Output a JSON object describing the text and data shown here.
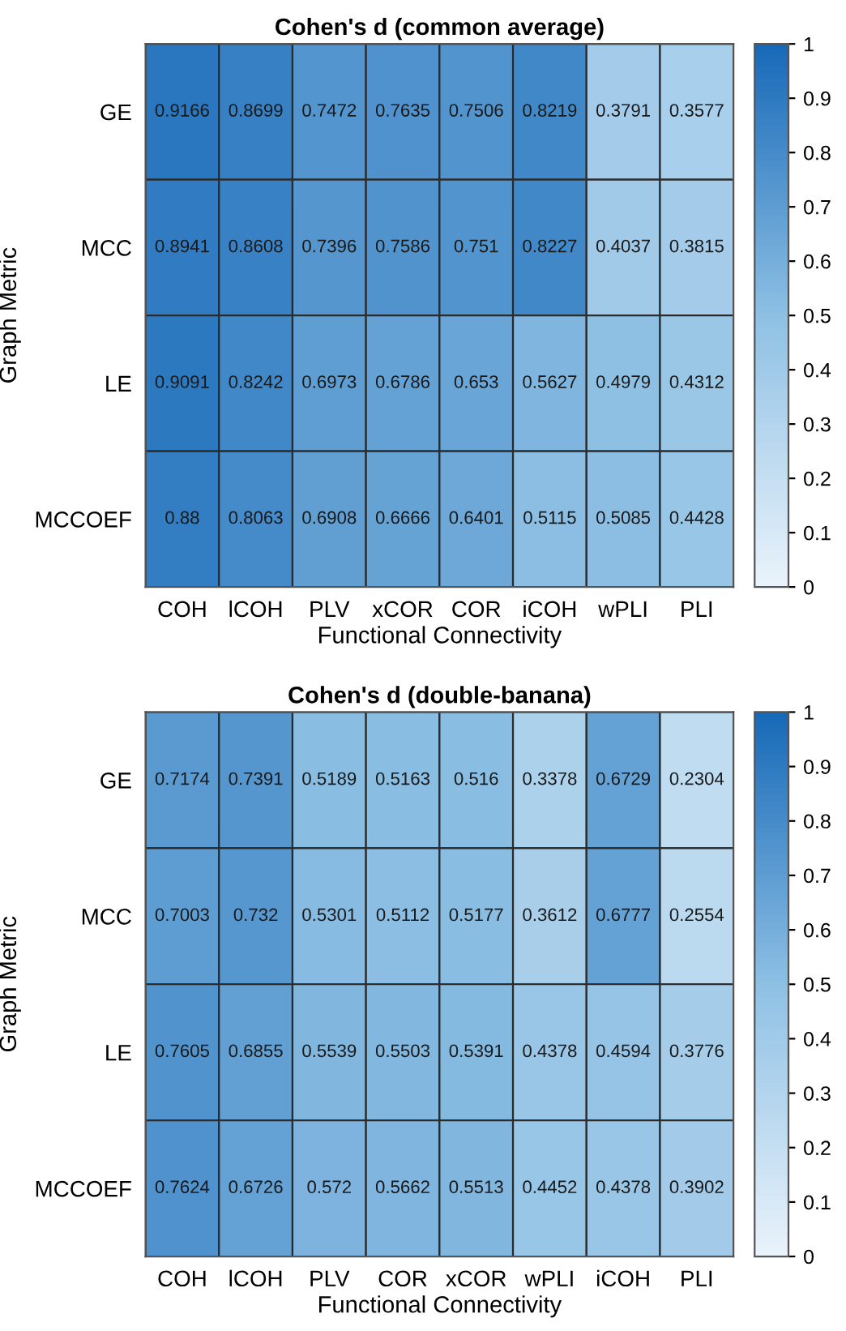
{
  "chart_data": [
    {
      "type": "heatmap",
      "title": "Cohen's d (common average)",
      "xlabel": "Functional Connectivity",
      "ylabel": "Graph Metric",
      "categories": [
        "COH",
        "lCOH",
        "PLV",
        "xCOR",
        "COR",
        "iCOH",
        "wPLI",
        "PLI"
      ],
      "y_categories": [
        "GE",
        "MCC",
        "LE",
        "MCCOEF"
      ],
      "cells": [
        [
          0.9166,
          0.8699,
          0.7472,
          0.7635,
          0.7506,
          0.8219,
          0.3791,
          0.3577
        ],
        [
          0.8941,
          0.8608,
          0.7396,
          0.7586,
          0.751,
          0.8227,
          0.4037,
          0.3815
        ],
        [
          0.9091,
          0.8242,
          0.6973,
          0.6786,
          0.653,
          0.5627,
          0.4979,
          0.4312
        ],
        [
          0.88,
          0.8063,
          0.6908,
          0.6666,
          0.6401,
          0.5115,
          0.5085,
          0.4428
        ]
      ],
      "data_labels": true,
      "clim": [
        0,
        1
      ],
      "cticks": [
        0,
        0.1,
        0.2,
        0.3,
        0.4,
        0.5,
        0.6,
        0.7,
        0.8,
        0.9,
        1
      ]
    },
    {
      "type": "heatmap",
      "title": "Cohen's d (double-banana)",
      "xlabel": "Functional Connectivity",
      "ylabel": "Graph Metric",
      "categories": [
        "COH",
        "lCOH",
        "PLV",
        "COR",
        "xCOR",
        "wPLI",
        "iCOH",
        "PLI"
      ],
      "y_categories": [
        "GE",
        "MCC",
        "LE",
        "MCCOEF"
      ],
      "cells": [
        [
          0.7174,
          0.7391,
          0.5189,
          0.5163,
          0.516,
          0.3378,
          0.6729,
          0.2304
        ],
        [
          0.7003,
          0.732,
          0.5301,
          0.5112,
          0.5177,
          0.3612,
          0.6777,
          0.2554
        ],
        [
          0.7605,
          0.6855,
          0.5539,
          0.5503,
          0.5391,
          0.4378,
          0.4594,
          0.3776
        ],
        [
          0.7624,
          0.6726,
          0.572,
          0.5662,
          0.5513,
          0.4452,
          0.4378,
          0.3902
        ]
      ],
      "data_labels": true,
      "clim": [
        0,
        1
      ],
      "cticks": [
        0,
        0.1,
        0.2,
        0.3,
        0.4,
        0.5,
        0.6,
        0.7,
        0.8,
        0.9,
        1
      ]
    }
  ]
}
